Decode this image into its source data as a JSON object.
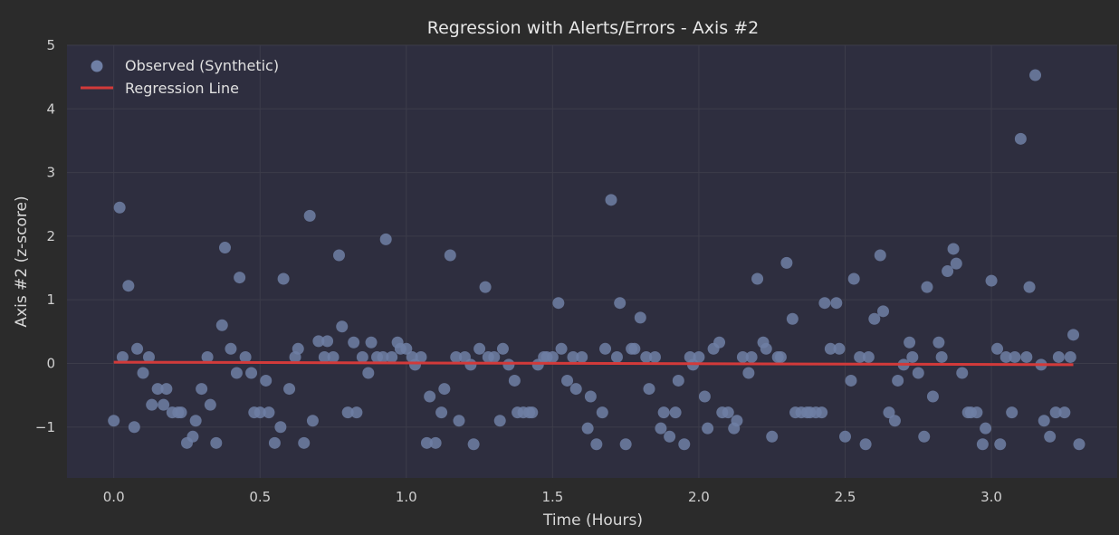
{
  "chart_data": {
    "type": "scatter",
    "title": "Regression with Alerts/Errors - Axis #2",
    "xlabel": "Time (Hours)",
    "ylabel": "Axis #2 (z-score)",
    "xlim": [
      -0.16,
      3.43
    ],
    "ylim": [
      -1.8,
      5.0
    ],
    "xticks": [
      "0.0",
      "0.5",
      "1.0",
      "1.5",
      "2.0",
      "2.5",
      "3.0"
    ],
    "xtick_values": [
      0.0,
      0.5,
      1.0,
      1.5,
      2.0,
      2.5,
      3.0
    ],
    "yticks": [
      "−1",
      "0",
      "1",
      "2",
      "3",
      "4",
      "5"
    ],
    "ytick_values": [
      -1,
      0,
      1,
      2,
      3,
      4,
      5
    ],
    "grid": true,
    "legend_position": "top-left",
    "colors": {
      "background": "#2b2b2b",
      "plot_background": "#2e2e3f",
      "grid": "#3c3c4a",
      "points": "#6f7fa5",
      "regression": "#d23a3a"
    },
    "series": [
      {
        "name": "Observed (Synthetic)",
        "kind": "scatter",
        "points": [
          [
            0.0,
            -0.9
          ],
          [
            0.02,
            2.45
          ],
          [
            0.03,
            0.1
          ],
          [
            0.05,
            1.22
          ],
          [
            0.07,
            -1.0
          ],
          [
            0.08,
            0.23
          ],
          [
            0.1,
            -0.15
          ],
          [
            0.12,
            0.1
          ],
          [
            0.13,
            -0.65
          ],
          [
            0.15,
            -0.4
          ],
          [
            0.17,
            -0.65
          ],
          [
            0.18,
            -0.4
          ],
          [
            0.2,
            -0.77
          ],
          [
            0.22,
            -0.77
          ],
          [
            0.23,
            -0.77
          ],
          [
            0.25,
            -1.25
          ],
          [
            0.27,
            -1.15
          ],
          [
            0.28,
            -0.9
          ],
          [
            0.3,
            -0.4
          ],
          [
            0.32,
            0.1
          ],
          [
            0.33,
            -0.65
          ],
          [
            0.35,
            -1.25
          ],
          [
            0.37,
            0.6
          ],
          [
            0.38,
            1.82
          ],
          [
            0.4,
            0.23
          ],
          [
            0.42,
            -0.15
          ],
          [
            0.43,
            1.35
          ],
          [
            0.45,
            0.1
          ],
          [
            0.47,
            -0.15
          ],
          [
            0.48,
            -0.77
          ],
          [
            0.5,
            -0.77
          ],
          [
            0.52,
            -0.27
          ],
          [
            0.53,
            -0.77
          ],
          [
            0.55,
            -1.25
          ],
          [
            0.57,
            -1.0
          ],
          [
            0.58,
            1.33
          ],
          [
            0.6,
            -0.4
          ],
          [
            0.62,
            0.1
          ],
          [
            0.63,
            0.23
          ],
          [
            0.65,
            -1.25
          ],
          [
            0.67,
            2.32
          ],
          [
            0.68,
            -0.9
          ],
          [
            0.7,
            0.35
          ],
          [
            0.72,
            0.1
          ],
          [
            0.73,
            0.35
          ],
          [
            0.75,
            0.1
          ],
          [
            0.77,
            1.7
          ],
          [
            0.78,
            0.58
          ],
          [
            0.8,
            -0.77
          ],
          [
            0.82,
            0.33
          ],
          [
            0.83,
            -0.77
          ],
          [
            0.85,
            0.1
          ],
          [
            0.87,
            -0.15
          ],
          [
            0.88,
            0.33
          ],
          [
            0.9,
            0.1
          ],
          [
            0.92,
            0.1
          ],
          [
            0.93,
            1.95
          ],
          [
            0.95,
            0.1
          ],
          [
            0.97,
            0.33
          ],
          [
            0.98,
            0.23
          ],
          [
            1.0,
            0.23
          ],
          [
            1.02,
            0.1
          ],
          [
            1.03,
            -0.02
          ],
          [
            1.05,
            0.1
          ],
          [
            1.07,
            -1.25
          ],
          [
            1.08,
            -0.52
          ],
          [
            1.1,
            -1.25
          ],
          [
            1.12,
            -0.77
          ],
          [
            1.13,
            -0.4
          ],
          [
            1.15,
            1.7
          ],
          [
            1.17,
            0.1
          ],
          [
            1.18,
            -0.9
          ],
          [
            1.2,
            0.1
          ],
          [
            1.22,
            -0.02
          ],
          [
            1.23,
            -1.27
          ],
          [
            1.25,
            0.23
          ],
          [
            1.27,
            1.2
          ],
          [
            1.28,
            0.1
          ],
          [
            1.3,
            0.1
          ],
          [
            1.32,
            -0.9
          ],
          [
            1.33,
            0.23
          ],
          [
            1.35,
            -0.02
          ],
          [
            1.37,
            -0.27
          ],
          [
            1.38,
            -0.77
          ],
          [
            1.4,
            -0.77
          ],
          [
            1.42,
            -0.77
          ],
          [
            1.43,
            -0.77
          ],
          [
            1.45,
            -0.02
          ],
          [
            1.47,
            0.1
          ],
          [
            1.48,
            0.1
          ],
          [
            1.5,
            0.1
          ],
          [
            1.52,
            0.95
          ],
          [
            1.53,
            0.23
          ],
          [
            1.55,
            -0.27
          ],
          [
            1.57,
            0.1
          ],
          [
            1.58,
            -0.4
          ],
          [
            1.6,
            0.1
          ],
          [
            1.62,
            -1.02
          ],
          [
            1.63,
            -0.52
          ],
          [
            1.65,
            -1.27
          ],
          [
            1.67,
            -0.77
          ],
          [
            1.68,
            0.23
          ],
          [
            1.7,
            2.57
          ],
          [
            1.72,
            0.1
          ],
          [
            1.73,
            0.95
          ],
          [
            1.75,
            -1.27
          ],
          [
            1.77,
            0.23
          ],
          [
            1.78,
            0.23
          ],
          [
            1.8,
            0.72
          ],
          [
            1.82,
            0.1
          ],
          [
            1.83,
            -0.4
          ],
          [
            1.85,
            0.1
          ],
          [
            1.87,
            -1.02
          ],
          [
            1.88,
            -0.77
          ],
          [
            1.9,
            -1.15
          ],
          [
            1.92,
            -0.77
          ],
          [
            1.93,
            -0.27
          ],
          [
            1.95,
            -1.27
          ],
          [
            1.97,
            0.1
          ],
          [
            1.98,
            -0.02
          ],
          [
            2.0,
            0.1
          ],
          [
            2.02,
            -0.52
          ],
          [
            2.03,
            -1.02
          ],
          [
            2.05,
            0.23
          ],
          [
            2.07,
            0.33
          ],
          [
            2.08,
            -0.77
          ],
          [
            2.1,
            -0.77
          ],
          [
            2.12,
            -1.02
          ],
          [
            2.13,
            -0.9
          ],
          [
            2.15,
            0.1
          ],
          [
            2.17,
            -0.15
          ],
          [
            2.18,
            0.1
          ],
          [
            2.2,
            1.33
          ],
          [
            2.22,
            0.33
          ],
          [
            2.23,
            0.23
          ],
          [
            2.25,
            -1.15
          ],
          [
            2.27,
            0.1
          ],
          [
            2.28,
            0.1
          ],
          [
            2.3,
            1.58
          ],
          [
            2.32,
            0.7
          ],
          [
            2.33,
            -0.77
          ],
          [
            2.35,
            -0.77
          ],
          [
            2.37,
            -0.77
          ],
          [
            2.38,
            -0.77
          ],
          [
            2.4,
            -0.77
          ],
          [
            2.42,
            -0.77
          ],
          [
            2.43,
            0.95
          ],
          [
            2.45,
            0.23
          ],
          [
            2.47,
            0.95
          ],
          [
            2.48,
            0.23
          ],
          [
            2.5,
            -1.15
          ],
          [
            2.52,
            -0.27
          ],
          [
            2.53,
            1.33
          ],
          [
            2.55,
            0.1
          ],
          [
            2.57,
            -1.27
          ],
          [
            2.58,
            0.1
          ],
          [
            2.6,
            0.7
          ],
          [
            2.62,
            1.7
          ],
          [
            2.63,
            0.82
          ],
          [
            2.65,
            -0.77
          ],
          [
            2.67,
            -0.9
          ],
          [
            2.68,
            -0.27
          ],
          [
            2.7,
            -0.02
          ],
          [
            2.72,
            0.33
          ],
          [
            2.73,
            0.1
          ],
          [
            2.75,
            -0.15
          ],
          [
            2.77,
            -1.15
          ],
          [
            2.78,
            1.2
          ],
          [
            2.8,
            -0.52
          ],
          [
            2.82,
            0.33
          ],
          [
            2.83,
            0.1
          ],
          [
            2.85,
            1.45
          ],
          [
            2.87,
            1.8
          ],
          [
            2.88,
            1.57
          ],
          [
            2.9,
            -0.15
          ],
          [
            2.92,
            -0.77
          ],
          [
            2.93,
            -0.77
          ],
          [
            2.95,
            -0.77
          ],
          [
            2.97,
            -1.27
          ],
          [
            2.98,
            -1.02
          ],
          [
            3.0,
            1.3
          ],
          [
            3.02,
            0.23
          ],
          [
            3.03,
            -1.27
          ],
          [
            3.05,
            0.1
          ],
          [
            3.07,
            -0.77
          ],
          [
            3.08,
            0.1
          ],
          [
            3.1,
            3.53
          ],
          [
            3.12,
            0.1
          ],
          [
            3.13,
            1.2
          ],
          [
            3.15,
            4.53
          ],
          [
            3.17,
            -0.02
          ],
          [
            3.18,
            -0.9
          ],
          [
            3.2,
            -1.15
          ],
          [
            3.22,
            -0.77
          ],
          [
            3.23,
            0.1
          ],
          [
            3.25,
            -0.77
          ],
          [
            3.27,
            0.1
          ],
          [
            3.28,
            0.45
          ],
          [
            3.3,
            -1.27
          ]
        ]
      },
      {
        "name": "Regression Line",
        "kind": "line",
        "points": [
          [
            0.0,
            0.02
          ],
          [
            3.28,
            -0.02
          ]
        ]
      }
    ]
  }
}
